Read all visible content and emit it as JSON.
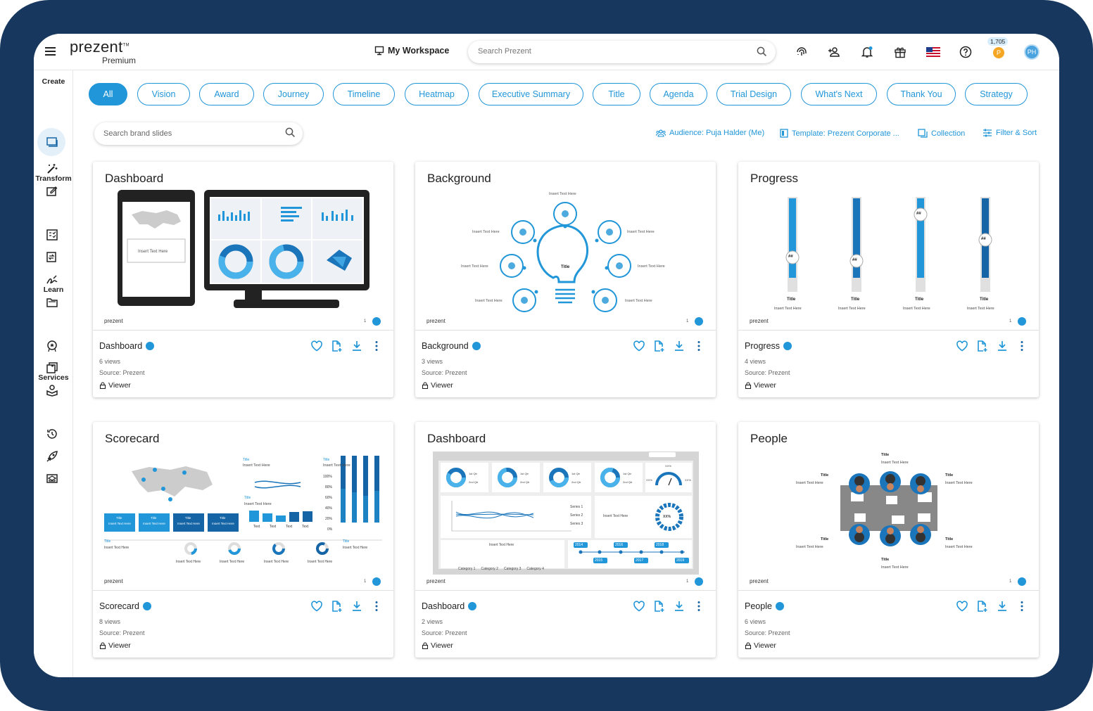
{
  "app": {
    "logo": "prezent",
    "logo_tm": "TM",
    "plan": "Premium",
    "workspace": "My Workspace",
    "search_placeholder": "Search Prezent",
    "coins": "1,705",
    "avatar": "PH"
  },
  "sidebar": {
    "sections": [
      "Create",
      "Transform",
      "Learn",
      "Services"
    ]
  },
  "filters": [
    "All",
    "Vision",
    "Award",
    "Journey",
    "Timeline",
    "Heatmap",
    "Executive Summary",
    "Title",
    "Agenda",
    "Trial Design",
    "What's Next",
    "Thank You",
    "Strategy"
  ],
  "toolbar": {
    "search_placeholder": "Search brand slides",
    "audience": "Audience: Puja Halder (Me)",
    "template": "Template: Prezent Corporate ...",
    "collection": "Collection",
    "filter": "Filter & Sort"
  },
  "cards": [
    {
      "slide_title": "Dashboard",
      "name": "Dashboard",
      "views": "6 views",
      "source": "Source: Prezent",
      "role": "Viewer"
    },
    {
      "slide_title": "Background",
      "name": "Background",
      "views": "3 views",
      "source": "Source: Prezent",
      "role": "Viewer"
    },
    {
      "slide_title": "Progress",
      "name": "Progress",
      "views": "4 views",
      "source": "Source: Prezent",
      "role": "Viewer"
    },
    {
      "slide_title": "Scorecard",
      "name": "Scorecard",
      "views": "8 views",
      "source": "Source: Prezent",
      "role": "Viewer"
    },
    {
      "slide_title": "Dashboard",
      "name": "Dashboard",
      "views": "2 views",
      "source": "Source: Prezent",
      "role": "Viewer"
    },
    {
      "slide_title": "People",
      "name": "People",
      "views": "6 views",
      "source": "Source: Prezent",
      "role": "Viewer"
    }
  ],
  "thumb_common": {
    "brand": "prezent",
    "page": "1"
  },
  "thumb_text": {
    "insert": "Insert Text Here",
    "title": "Title",
    "hash": "##",
    "pct": "XX%",
    "category": [
      "Category 1",
      "Category 2",
      "Category 3",
      "Category 4"
    ],
    "series": [
      "Series 1",
      "Series 2",
      "Series 3"
    ],
    "qtr": [
      "1st Qtr",
      "2nd Qtr"
    ],
    "years": [
      "2014",
      "2015",
      "2016",
      "2017",
      "2018",
      "2019"
    ],
    "percent_ticks": [
      "100%",
      "80%",
      "60%",
      "40%",
      "20%",
      "0%"
    ],
    "text_legend": "Text"
  },
  "colors": {
    "accent": "#2196d8",
    "frame": "#17375e",
    "dark_blue": "#1565a6"
  }
}
